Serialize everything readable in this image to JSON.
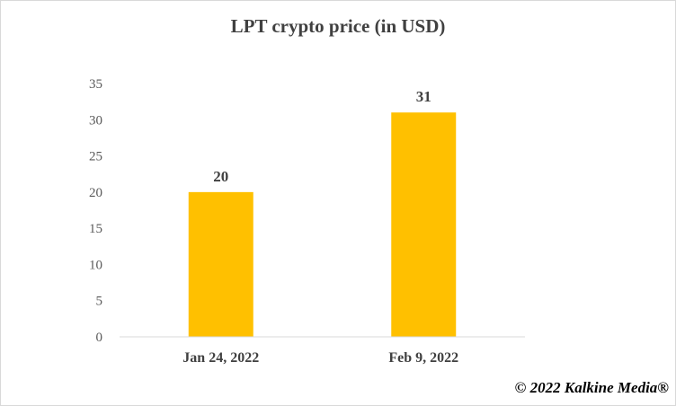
{
  "chart_data": {
    "type": "bar",
    "title": "LPT crypto price (in USD)",
    "categories": [
      "Jan 24, 2022",
      "Feb 9, 2022"
    ],
    "values": [
      20,
      31
    ],
    "data_labels": [
      "20",
      "31"
    ],
    "ylim": [
      0,
      35
    ],
    "yticks": [
      0,
      5,
      10,
      15,
      20,
      25,
      30,
      35
    ],
    "xlabel": "",
    "ylabel": "",
    "grid": false,
    "legend": "none",
    "bar_color": "#FFC000"
  },
  "footer": {
    "copyright": "© 2022 Kalkine Media®"
  }
}
